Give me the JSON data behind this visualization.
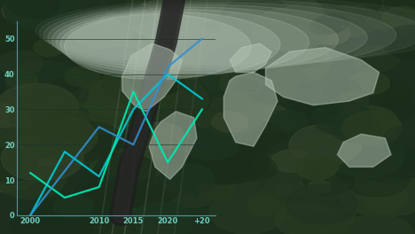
{
  "bg_color": "#1c2e1e",
  "x_labels": [
    "2000",
    "2010",
    "2015",
    "2020",
    "+20"
  ],
  "x_tick_vals": [
    2000,
    2010,
    2015,
    2020,
    2025
  ],
  "y_ticks": [
    0,
    10,
    20,
    30,
    40,
    50
  ],
  "line1_x": [
    2000,
    2005,
    2010,
    2015,
    2020,
    2025
  ],
  "line1_y": [
    0,
    18,
    11,
    30,
    40,
    33
  ],
  "line2_x": [
    2000,
    2005,
    2010,
    2015,
    2020,
    2025
  ],
  "line2_y": [
    12,
    5,
    8,
    35,
    15,
    30
  ],
  "line3_x": [
    2000,
    2010,
    2015,
    2020,
    2025
  ],
  "line3_y": [
    0,
    25,
    20,
    42,
    50
  ],
  "line1_color": "#00c8d4",
  "line2_color": "#00e8b0",
  "line3_color": "#3090d0",
  "axis_color": "#40a0a0",
  "tick_color": "#70d0c0",
  "grid_color": "#1a3028",
  "world_map_color": "#b8c8b8",
  "world_map_alpha": 0.5,
  "mist_color": "#c8d8cc",
  "forest_colors": [
    "#1a2d1c",
    "#1e3220",
    "#243820",
    "#283c22",
    "#1c2e1a",
    "#304028"
  ],
  "road_color": "#252525",
  "ray_color": "#d0ddd0"
}
